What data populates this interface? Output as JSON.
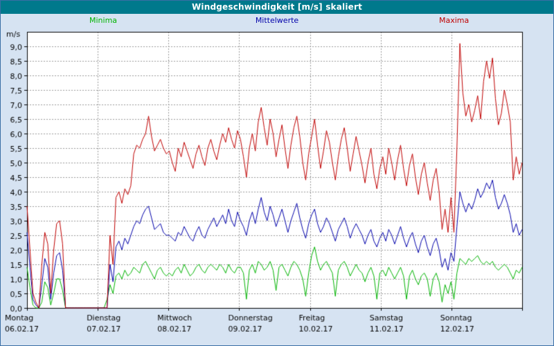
{
  "window": {
    "title": "Windgeschwindigkeit [m/s] skaliert"
  },
  "legend": {
    "minima": "Minima",
    "mittelwerte": "Mittelwerte",
    "maxima": "Maxima"
  },
  "colors": {
    "minima": "#00b400",
    "mittelwerte": "#0000aa",
    "maxima": "#c00000",
    "titlebar": "#00798c",
    "background": "#d6e3f2",
    "plot_bg": "#ffffff",
    "grid": "#999999",
    "axis": "#000000",
    "border": "#3a6ea5"
  },
  "chart_data": {
    "type": "line",
    "title": "Windgeschwindigkeit [m/s] skaliert",
    "ylabel": "m/s",
    "xlabel": "",
    "ylim": [
      0,
      9.5
    ],
    "y_tick_step": 0.5,
    "y_tick_labels": [
      "0,0",
      "0,5",
      "1,0",
      "1,5",
      "2,0",
      "2,5",
      "3,0",
      "3,5",
      "4,0",
      "4,5",
      "5,0",
      "5,5",
      "6,0",
      "6,5",
      "7,0",
      "7,5",
      "8,0",
      "8,5",
      "9,0"
    ],
    "x_day_names": [
      "Montag",
      "Dienstag",
      "Mittwoch",
      "Donnerstag",
      "Freitag",
      "Samstag",
      "Sonntag"
    ],
    "x_day_dates": [
      "06.02.17",
      "07.02.17",
      "08.02.17",
      "09.02.17",
      "10.02.17",
      "11.02.17",
      "12.02.17"
    ],
    "points_per_day": 24,
    "grid": true,
    "legend_position": "top",
    "series": [
      {
        "name": "Minima",
        "color_key": "minima",
        "values": [
          1.4,
          0.7,
          0.1,
          0.0,
          0.0,
          0.2,
          0.9,
          0.7,
          0.1,
          0.5,
          1.0,
          1.0,
          0.6,
          0.0,
          0.0,
          0.0,
          0.0,
          0.0,
          0.0,
          0.0,
          0.0,
          0.0,
          0.0,
          0.0,
          0.0,
          0.0,
          0.0,
          0.3,
          0.8,
          0.5,
          1.1,
          1.2,
          1.0,
          1.3,
          1.1,
          1.2,
          1.4,
          1.3,
          1.2,
          1.5,
          1.6,
          1.4,
          1.2,
          1.0,
          1.3,
          1.4,
          1.2,
          1.1,
          1.2,
          1.1,
          1.3,
          1.4,
          1.2,
          1.5,
          1.3,
          1.1,
          1.2,
          1.4,
          1.5,
          1.3,
          1.2,
          1.4,
          1.5,
          1.4,
          1.3,
          1.5,
          1.4,
          1.2,
          1.5,
          1.3,
          1.2,
          1.4,
          1.4,
          1.2,
          0.3,
          1.3,
          1.5,
          1.2,
          1.6,
          1.5,
          1.3,
          1.4,
          1.6,
          1.3,
          0.6,
          1.4,
          1.5,
          1.3,
          1.1,
          1.4,
          1.6,
          1.5,
          1.3,
          1.0,
          0.4,
          1.2,
          1.8,
          2.1,
          1.6,
          1.3,
          1.5,
          1.6,
          1.4,
          1.2,
          0.4,
          1.3,
          1.5,
          1.6,
          1.4,
          1.1,
          1.3,
          1.5,
          1.3,
          1.2,
          0.9,
          1.2,
          1.4,
          1.1,
          0.3,
          1.2,
          1.3,
          1.1,
          1.4,
          1.2,
          1.0,
          1.2,
          1.4,
          1.1,
          0.3,
          1.1,
          1.3,
          1.0,
          0.8,
          1.1,
          1.2,
          1.0,
          0.4,
          1.0,
          1.2,
          0.9,
          0.2,
          0.8,
          0.5,
          0.9,
          0.3,
          1.2,
          1.7,
          1.6,
          1.5,
          1.7,
          1.6,
          1.7,
          1.8,
          1.6,
          1.5,
          1.6,
          1.5,
          1.6,
          1.4,
          1.3,
          1.4,
          1.5,
          1.4,
          1.2,
          1.0,
          1.3,
          1.2,
          1.4
        ]
      },
      {
        "name": "Mittelwerte",
        "color_key": "mittelwerte",
        "values": [
          2.6,
          1.4,
          0.3,
          0.1,
          0.0,
          0.8,
          1.7,
          1.4,
          0.3,
          1.2,
          1.8,
          1.9,
          1.3,
          0.0,
          0.0,
          0.0,
          0.0,
          0.0,
          0.0,
          0.0,
          0.0,
          0.0,
          0.0,
          0.0,
          0.0,
          0.0,
          0.0,
          0.0,
          1.5,
          0.9,
          2.1,
          2.3,
          2.0,
          2.4,
          2.2,
          2.5,
          2.8,
          3.0,
          2.9,
          3.2,
          3.4,
          3.5,
          3.1,
          2.7,
          2.8,
          2.9,
          2.6,
          2.5,
          2.5,
          2.4,
          2.3,
          2.6,
          2.5,
          2.8,
          2.6,
          2.4,
          2.3,
          2.6,
          2.8,
          2.5,
          2.4,
          2.7,
          2.9,
          3.1,
          2.8,
          3.0,
          3.2,
          2.9,
          3.4,
          3.0,
          2.8,
          3.3,
          3.0,
          2.8,
          2.5,
          3.0,
          3.3,
          2.9,
          3.4,
          3.8,
          3.3,
          3.0,
          3.5,
          3.2,
          2.8,
          3.1,
          3.4,
          3.0,
          2.6,
          3.0,
          3.3,
          3.6,
          3.1,
          2.7,
          2.4,
          2.9,
          3.2,
          3.4,
          2.9,
          2.6,
          2.8,
          3.1,
          2.9,
          2.6,
          2.3,
          2.7,
          2.9,
          3.1,
          2.8,
          2.4,
          2.7,
          2.9,
          2.7,
          2.5,
          2.2,
          2.5,
          2.7,
          2.3,
          2.1,
          2.4,
          2.6,
          2.3,
          2.7,
          2.5,
          2.2,
          2.5,
          2.8,
          2.4,
          2.1,
          2.4,
          2.6,
          2.2,
          1.9,
          2.3,
          2.5,
          2.1,
          1.8,
          2.2,
          2.4,
          2.0,
          1.4,
          1.7,
          1.3,
          1.9,
          1.6,
          2.8,
          4.0,
          3.6,
          3.3,
          3.6,
          3.4,
          3.7,
          4.1,
          3.8,
          4.0,
          4.3,
          4.1,
          4.4,
          3.8,
          3.4,
          3.6,
          3.9,
          3.6,
          3.2,
          2.6,
          2.9,
          2.5,
          2.7
        ]
      },
      {
        "name": "Maxima",
        "color_key": "maxima",
        "values": [
          3.5,
          2.0,
          0.5,
          0.2,
          0.0,
          1.5,
          2.6,
          2.2,
          0.5,
          2.0,
          2.9,
          3.0,
          2.2,
          0.0,
          0.0,
          0.0,
          0.0,
          0.0,
          0.0,
          0.0,
          0.0,
          0.0,
          0.0,
          0.0,
          0.0,
          0.0,
          0.0,
          0.0,
          2.5,
          1.5,
          3.8,
          4.0,
          3.6,
          4.1,
          3.9,
          4.2,
          5.3,
          5.6,
          5.5,
          5.8,
          6.0,
          6.6,
          5.9,
          5.4,
          5.6,
          5.8,
          5.5,
          5.3,
          5.4,
          5.0,
          4.7,
          5.5,
          5.2,
          5.7,
          5.4,
          5.1,
          4.8,
          5.3,
          5.6,
          5.2,
          4.9,
          5.5,
          5.8,
          5.4,
          5.1,
          5.6,
          6.0,
          5.7,
          6.2,
          5.8,
          5.5,
          6.1,
          5.8,
          5.2,
          4.5,
          5.5,
          6.0,
          5.4,
          6.4,
          6.9,
          6.2,
          5.6,
          6.5,
          6.0,
          5.2,
          5.8,
          6.3,
          5.5,
          4.8,
          5.6,
          6.2,
          6.6,
          5.9,
          5.0,
          4.4,
          5.3,
          5.9,
          6.5,
          5.6,
          4.8,
          5.4,
          6.1,
          5.7,
          5.0,
          4.4,
          5.2,
          5.8,
          6.2,
          5.5,
          4.7,
          5.3,
          5.9,
          5.4,
          4.9,
          4.3,
          5.0,
          5.5,
          4.6,
          4.1,
          4.8,
          5.2,
          4.6,
          5.5,
          5.0,
          4.4,
          5.1,
          5.6,
          4.8,
          4.2,
          4.9,
          5.3,
          4.5,
          3.9,
          4.6,
          5.0,
          4.3,
          3.7,
          4.4,
          4.8,
          4.0,
          2.7,
          3.4,
          2.6,
          3.8,
          2.6,
          5.5,
          9.1,
          7.4,
          6.6,
          7.0,
          6.4,
          6.8,
          7.3,
          6.5,
          7.8,
          8.5,
          7.9,
          8.6,
          7.2,
          6.3,
          6.7,
          7.5,
          7.0,
          6.4,
          4.4,
          5.2,
          4.6,
          5.0
        ]
      }
    ]
  }
}
